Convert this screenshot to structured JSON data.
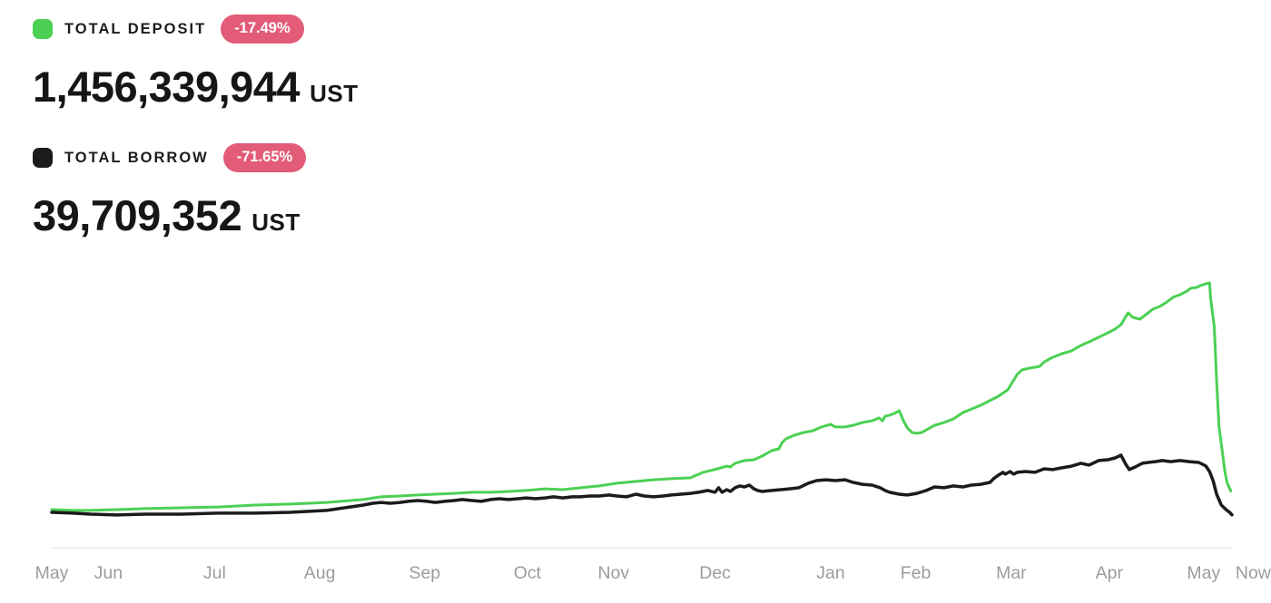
{
  "header": {
    "deposit": {
      "label": "TOTAL DEPOSIT",
      "change": "-17.49%",
      "value": "1,456,339,944",
      "unit": "UST"
    },
    "borrow": {
      "label": "TOTAL BORROW",
      "change": "-71.65%",
      "value": "39,709,352",
      "unit": "UST"
    }
  },
  "colors": {
    "deposit_green": "#4bd053",
    "borrow_black": "#1b1b1b",
    "badge_pink": "#e25c78",
    "axis_line": "#e7e7e7",
    "axis_text": "#9c9c9c"
  },
  "chart_data": {
    "type": "line",
    "title": "",
    "xlabel": "",
    "ylabel": "",
    "unit": "UST",
    "value_scale": "millions of UST",
    "grid": "off",
    "legend_position": "top-left",
    "x_range_note": "t is fraction of time axis, May 2021 (0) to Now / mid-May 2022 (1)",
    "ylim": [
      0,
      14500
    ],
    "x_ticks": [
      {
        "label": "May",
        "t": 0.0
      },
      {
        "label": "Jun",
        "t": 0.048
      },
      {
        "label": "Jul",
        "t": 0.138
      },
      {
        "label": "Aug",
        "t": 0.227
      },
      {
        "label": "Sep",
        "t": 0.316
      },
      {
        "label": "Oct",
        "t": 0.403
      },
      {
        "label": "Nov",
        "t": 0.476
      },
      {
        "label": "Dec",
        "t": 0.562
      },
      {
        "label": "Jan",
        "t": 0.66
      },
      {
        "label": "Feb",
        "t": 0.732
      },
      {
        "label": "Mar",
        "t": 0.813
      },
      {
        "label": "Apr",
        "t": 0.896
      },
      {
        "label": "May",
        "t": 0.976
      },
      {
        "label": "Now",
        "t": 1.018
      }
    ],
    "series": [
      {
        "name": "TOTAL DEPOSIT",
        "color": "#4bd053",
        "width": 3,
        "data_name": "deposit-line",
        "points": [
          [
            0.0,
            350
          ],
          [
            0.018,
            300
          ],
          [
            0.033,
            300
          ],
          [
            0.056,
            350
          ],
          [
            0.079,
            410
          ],
          [
            0.11,
            460
          ],
          [
            0.141,
            510
          ],
          [
            0.172,
            620
          ],
          [
            0.202,
            680
          ],
          [
            0.233,
            780
          ],
          [
            0.264,
            950
          ],
          [
            0.279,
            1110
          ],
          [
            0.295,
            1160
          ],
          [
            0.31,
            1220
          ],
          [
            0.325,
            1270
          ],
          [
            0.341,
            1320
          ],
          [
            0.356,
            1380
          ],
          [
            0.372,
            1380
          ],
          [
            0.387,
            1430
          ],
          [
            0.402,
            1490
          ],
          [
            0.418,
            1590
          ],
          [
            0.433,
            1540
          ],
          [
            0.448,
            1650
          ],
          [
            0.464,
            1760
          ],
          [
            0.479,
            1920
          ],
          [
            0.495,
            2030
          ],
          [
            0.51,
            2130
          ],
          [
            0.525,
            2190
          ],
          [
            0.541,
            2240
          ],
          [
            0.552,
            2570
          ],
          [
            0.564,
            2780
          ],
          [
            0.572,
            2940
          ],
          [
            0.575,
            2890
          ],
          [
            0.579,
            3110
          ],
          [
            0.587,
            3270
          ],
          [
            0.595,
            3320
          ],
          [
            0.602,
            3540
          ],
          [
            0.61,
            3860
          ],
          [
            0.616,
            3970
          ],
          [
            0.619,
            4350
          ],
          [
            0.622,
            4560
          ],
          [
            0.629,
            4780
          ],
          [
            0.637,
            4940
          ],
          [
            0.645,
            5050
          ],
          [
            0.652,
            5270
          ],
          [
            0.66,
            5430
          ],
          [
            0.664,
            5270
          ],
          [
            0.672,
            5270
          ],
          [
            0.679,
            5370
          ],
          [
            0.687,
            5540
          ],
          [
            0.695,
            5640
          ],
          [
            0.701,
            5810
          ],
          [
            0.704,
            5640
          ],
          [
            0.706,
            5910
          ],
          [
            0.71,
            5970
          ],
          [
            0.714,
            6080
          ],
          [
            0.718,
            6240
          ],
          [
            0.722,
            5590
          ],
          [
            0.725,
            5210
          ],
          [
            0.729,
            4940
          ],
          [
            0.733,
            4890
          ],
          [
            0.737,
            4940
          ],
          [
            0.741,
            5100
          ],
          [
            0.748,
            5370
          ],
          [
            0.756,
            5540
          ],
          [
            0.764,
            5750
          ],
          [
            0.772,
            6130
          ],
          [
            0.787,
            6560
          ],
          [
            0.802,
            7100
          ],
          [
            0.81,
            7480
          ],
          [
            0.818,
            8400
          ],
          [
            0.822,
            8670
          ],
          [
            0.829,
            8780
          ],
          [
            0.837,
            8880
          ],
          [
            0.841,
            9150
          ],
          [
            0.848,
            9420
          ],
          [
            0.856,
            9640
          ],
          [
            0.864,
            9800
          ],
          [
            0.872,
            10130
          ],
          [
            0.879,
            10340
          ],
          [
            0.887,
            10610
          ],
          [
            0.895,
            10880
          ],
          [
            0.901,
            11100
          ],
          [
            0.906,
            11370
          ],
          [
            0.912,
            12070
          ],
          [
            0.916,
            11800
          ],
          [
            0.922,
            11690
          ],
          [
            0.927,
            11960
          ],
          [
            0.933,
            12290
          ],
          [
            0.939,
            12450
          ],
          [
            0.945,
            12720
          ],
          [
            0.95,
            12990
          ],
          [
            0.956,
            13150
          ],
          [
            0.962,
            13370
          ],
          [
            0.965,
            13530
          ],
          [
            0.97,
            13580
          ],
          [
            0.973,
            13690
          ],
          [
            0.978,
            13800
          ],
          [
            0.981,
            13850
          ],
          [
            0.982,
            12880
          ],
          [
            0.985,
            11260
          ],
          [
            0.987,
            8020
          ],
          [
            0.989,
            5320
          ],
          [
            0.992,
            3700
          ],
          [
            0.994,
            2620
          ],
          [
            0.996,
            1920
          ],
          [
            0.999,
            1456
          ]
        ]
      },
      {
        "name": "TOTAL BORROW",
        "color": "#1b1b1b",
        "width": 3.5,
        "data_name": "borrow-line",
        "points": [
          [
            0.0,
            190
          ],
          [
            0.018,
            140
          ],
          [
            0.033,
            80
          ],
          [
            0.056,
            30
          ],
          [
            0.079,
            80
          ],
          [
            0.11,
            80
          ],
          [
            0.141,
            140
          ],
          [
            0.172,
            140
          ],
          [
            0.202,
            190
          ],
          [
            0.233,
            300
          ],
          [
            0.264,
            620
          ],
          [
            0.272,
            730
          ],
          [
            0.279,
            780
          ],
          [
            0.287,
            730
          ],
          [
            0.295,
            780
          ],
          [
            0.302,
            840
          ],
          [
            0.31,
            890
          ],
          [
            0.318,
            840
          ],
          [
            0.325,
            780
          ],
          [
            0.333,
            840
          ],
          [
            0.341,
            890
          ],
          [
            0.348,
            950
          ],
          [
            0.356,
            890
          ],
          [
            0.364,
            840
          ],
          [
            0.372,
            950
          ],
          [
            0.379,
            1000
          ],
          [
            0.387,
            950
          ],
          [
            0.395,
            1000
          ],
          [
            0.402,
            1050
          ],
          [
            0.41,
            1000
          ],
          [
            0.418,
            1050
          ],
          [
            0.425,
            1110
          ],
          [
            0.433,
            1050
          ],
          [
            0.441,
            1110
          ],
          [
            0.448,
            1110
          ],
          [
            0.456,
            1160
          ],
          [
            0.464,
            1160
          ],
          [
            0.472,
            1220
          ],
          [
            0.479,
            1160
          ],
          [
            0.487,
            1110
          ],
          [
            0.495,
            1270
          ],
          [
            0.502,
            1160
          ],
          [
            0.51,
            1110
          ],
          [
            0.518,
            1160
          ],
          [
            0.525,
            1220
          ],
          [
            0.533,
            1270
          ],
          [
            0.541,
            1320
          ],
          [
            0.548,
            1380
          ],
          [
            0.556,
            1490
          ],
          [
            0.562,
            1380
          ],
          [
            0.565,
            1650
          ],
          [
            0.568,
            1380
          ],
          [
            0.572,
            1540
          ],
          [
            0.575,
            1430
          ],
          [
            0.579,
            1650
          ],
          [
            0.583,
            1760
          ],
          [
            0.587,
            1700
          ],
          [
            0.591,
            1810
          ],
          [
            0.595,
            1590
          ],
          [
            0.598,
            1490
          ],
          [
            0.602,
            1430
          ],
          [
            0.61,
            1490
          ],
          [
            0.618,
            1540
          ],
          [
            0.625,
            1590
          ],
          [
            0.633,
            1650
          ],
          [
            0.641,
            1920
          ],
          [
            0.648,
            2080
          ],
          [
            0.656,
            2130
          ],
          [
            0.664,
            2080
          ],
          [
            0.672,
            2130
          ],
          [
            0.679,
            1970
          ],
          [
            0.687,
            1860
          ],
          [
            0.695,
            1810
          ],
          [
            0.702,
            1650
          ],
          [
            0.706,
            1490
          ],
          [
            0.71,
            1380
          ],
          [
            0.718,
            1270
          ],
          [
            0.725,
            1220
          ],
          [
            0.733,
            1320
          ],
          [
            0.741,
            1490
          ],
          [
            0.748,
            1700
          ],
          [
            0.756,
            1650
          ],
          [
            0.764,
            1760
          ],
          [
            0.772,
            1700
          ],
          [
            0.779,
            1810
          ],
          [
            0.787,
            1860
          ],
          [
            0.795,
            1970
          ],
          [
            0.798,
            2190
          ],
          [
            0.802,
            2400
          ],
          [
            0.806,
            2570
          ],
          [
            0.808,
            2460
          ],
          [
            0.812,
            2620
          ],
          [
            0.815,
            2460
          ],
          [
            0.818,
            2570
          ],
          [
            0.825,
            2620
          ],
          [
            0.833,
            2570
          ],
          [
            0.841,
            2780
          ],
          [
            0.848,
            2730
          ],
          [
            0.856,
            2840
          ],
          [
            0.864,
            2940
          ],
          [
            0.872,
            3110
          ],
          [
            0.879,
            3000
          ],
          [
            0.887,
            3270
          ],
          [
            0.895,
            3320
          ],
          [
            0.901,
            3430
          ],
          [
            0.906,
            3590
          ],
          [
            0.91,
            3050
          ],
          [
            0.913,
            2730
          ],
          [
            0.918,
            2890
          ],
          [
            0.924,
            3110
          ],
          [
            0.929,
            3160
          ],
          [
            0.935,
            3210
          ],
          [
            0.941,
            3270
          ],
          [
            0.948,
            3210
          ],
          [
            0.956,
            3270
          ],
          [
            0.964,
            3210
          ],
          [
            0.972,
            3160
          ],
          [
            0.975,
            3050
          ],
          [
            0.978,
            2940
          ],
          [
            0.981,
            2620
          ],
          [
            0.984,
            2080
          ],
          [
            0.987,
            1270
          ],
          [
            0.991,
            620
          ],
          [
            0.995,
            350
          ],
          [
            0.998,
            190
          ],
          [
            1.0,
            40
          ]
        ]
      }
    ]
  }
}
